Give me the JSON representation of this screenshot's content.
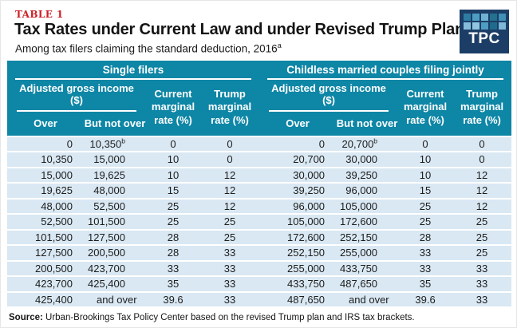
{
  "header": {
    "kicker": "TABLE 1",
    "title": "Tax Rates under Current Law and under Revised Trump Plan",
    "subtitle": "Among tax filers claiming the standard deduction, 2016",
    "subtitle_sup": "a"
  },
  "logo": {
    "text": "TPC",
    "squares": [
      "#2d7ca3",
      "#4e9dc3",
      "#6fb3d4",
      "#23708f",
      "#4090b6",
      "#85bedb",
      "#90c6df",
      "#4e9dc3",
      "#1f6b8d",
      "#7db9d6"
    ]
  },
  "colors": {
    "teal": "#0e86a6",
    "rowblue": "#d9e8f3",
    "red": "#cd2026",
    "navy": "#1c3e66"
  },
  "table": {
    "groups": [
      {
        "label": "Single filers"
      },
      {
        "label": "Childless married couples filing jointly"
      }
    ],
    "agi_label": "Adjusted gross income ($)",
    "over_label": "Over",
    "but_label": "But not over",
    "current_label": "Current marginal rate (%)",
    "trump_label": "Trump marginal rate (%)",
    "rows": [
      {
        "cells": [
          "0",
          "10,350",
          "0",
          "0",
          "0",
          "20,700",
          "0",
          "0"
        ],
        "sups": {
          "1": "b",
          "5": "b"
        }
      },
      {
        "cells": [
          "10,350",
          "15,000",
          "10",
          "0",
          "20,700",
          "30,000",
          "10",
          "0"
        ]
      },
      {
        "cells": [
          "15,000",
          "19,625",
          "10",
          "12",
          "30,000",
          "39,250",
          "10",
          "12"
        ]
      },
      {
        "cells": [
          "19,625",
          "48,000",
          "15",
          "12",
          "39,250",
          "96,000",
          "15",
          "12"
        ]
      },
      {
        "cells": [
          "48,000",
          "52,500",
          "25",
          "12",
          "96,000",
          "105,000",
          "25",
          "12"
        ]
      },
      {
        "cells": [
          "52,500",
          "101,500",
          "25",
          "25",
          "105,000",
          "172,600",
          "25",
          "25"
        ]
      },
      {
        "cells": [
          "101,500",
          "127,500",
          "28",
          "25",
          "172,600",
          "252,150",
          "28",
          "25"
        ]
      },
      {
        "cells": [
          "127,500",
          "200,500",
          "28",
          "33",
          "252,150",
          "255,000",
          "33",
          "25"
        ]
      },
      {
        "cells": [
          "200,500",
          "423,700",
          "33",
          "33",
          "255,000",
          "433,750",
          "33",
          "33"
        ]
      },
      {
        "cells": [
          "423,700",
          "425,400",
          "35",
          "33",
          "433,750",
          "487,650",
          "35",
          "33"
        ]
      },
      {
        "cells": [
          "425,400",
          "and over",
          "39.6",
          "33",
          "487,650",
          "and over",
          "39.6",
          "33"
        ]
      }
    ]
  },
  "footer": {
    "source_label": "Source:",
    "source_text": " Urban-Brookings Tax Policy Center based on the revised Trump plan and IRS tax brackets."
  },
  "chart_data": [
    {
      "type": "table",
      "title": "Single filers",
      "columns": [
        "Adjusted gross income over ($)",
        "Adjusted gross income but not over ($)",
        "Current marginal rate (%)",
        "Trump marginal rate (%)"
      ],
      "rows": [
        [
          0,
          10350,
          0,
          0
        ],
        [
          10350,
          15000,
          10,
          0
        ],
        [
          15000,
          19625,
          10,
          12
        ],
        [
          19625,
          48000,
          15,
          12
        ],
        [
          48000,
          52500,
          25,
          12
        ],
        [
          52500,
          101500,
          25,
          25
        ],
        [
          101500,
          127500,
          28,
          25
        ],
        [
          127500,
          200500,
          28,
          33
        ],
        [
          200500,
          423700,
          33,
          33
        ],
        [
          423700,
          425400,
          35,
          33
        ],
        [
          425400,
          "and over",
          39.6,
          33
        ]
      ]
    },
    {
      "type": "table",
      "title": "Childless married couples filing jointly",
      "columns": [
        "Adjusted gross income over ($)",
        "Adjusted gross income but not over ($)",
        "Current marginal rate (%)",
        "Trump marginal rate (%)"
      ],
      "rows": [
        [
          0,
          20700,
          0,
          0
        ],
        [
          20700,
          30000,
          10,
          0
        ],
        [
          30000,
          39250,
          10,
          12
        ],
        [
          39250,
          96000,
          15,
          12
        ],
        [
          96000,
          105000,
          25,
          12
        ],
        [
          105000,
          172600,
          25,
          25
        ],
        [
          172600,
          252150,
          28,
          25
        ],
        [
          252150,
          255000,
          33,
          25
        ],
        [
          255000,
          433750,
          33,
          33
        ],
        [
          433750,
          487650,
          35,
          33
        ],
        [
          487650,
          "and over",
          39.6,
          33
        ]
      ]
    }
  ]
}
